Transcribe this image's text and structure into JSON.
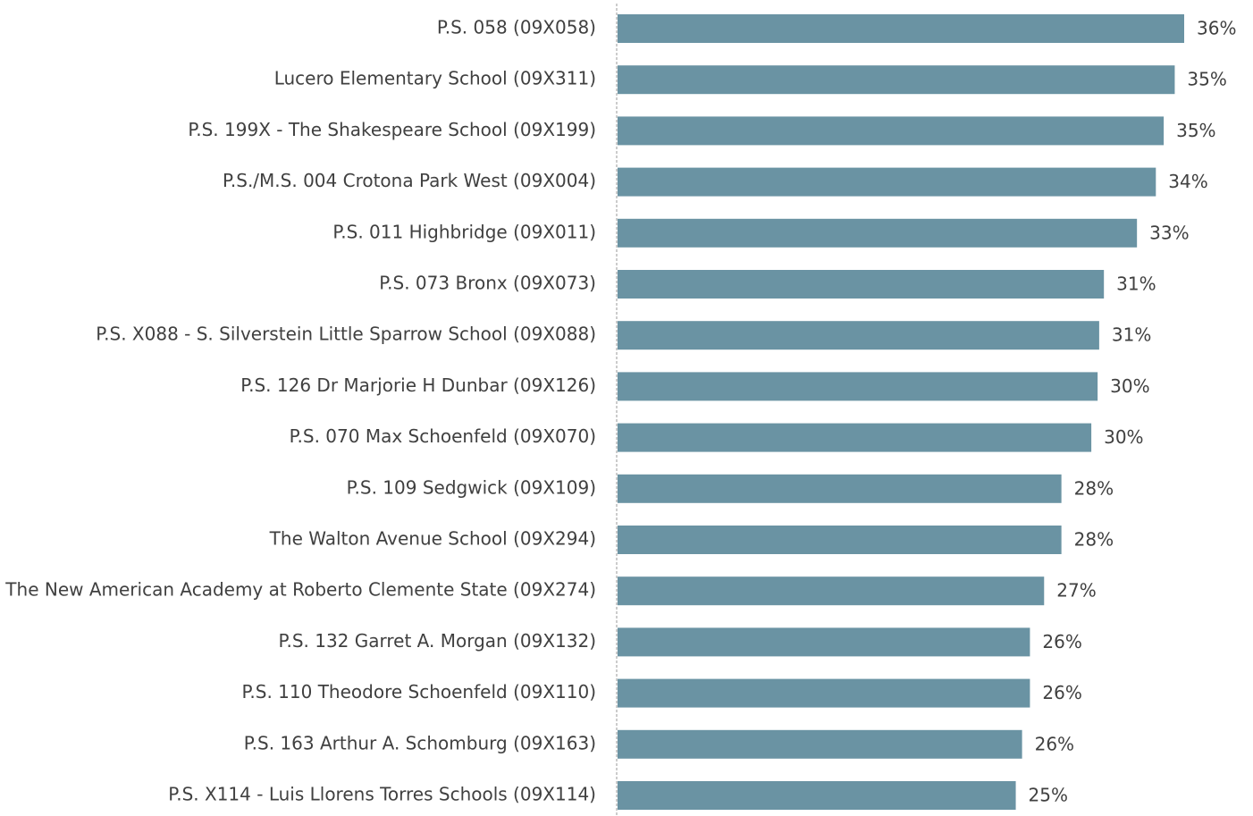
{
  "chart_data": {
    "type": "hbar",
    "categories": [
      "P.S. 058 (09X058)",
      "Lucero Elementary School (09X311)",
      "P.S. 199X - The Shakespeare School (09X199)",
      "P.S./M.S. 004 Crotona Park West (09X004)",
      "P.S. 011 Highbridge (09X011)",
      "P.S. 073 Bronx (09X073)",
      "P.S. X088 - S. Silverstein Little Sparrow School (09X088)",
      "P.S. 126 Dr Marjorie H Dunbar (09X126)",
      "P.S. 070 Max Schoenfeld (09X070)",
      "P.S. 109 Sedgwick (09X109)",
      "The Walton Avenue School (09X294)",
      "The New American Academy at Roberto Clemente State (09X274)",
      "P.S. 132 Garret A. Morgan (09X132)",
      "P.S. 110 Theodore Schoenfeld (09X110)",
      "P.S. 163 Arthur A. Schomburg (09X163)",
      "P.S. X114 - Luis Llorens Torres Schools (09X114)"
    ],
    "values": [
      36.0,
      35.4,
      34.7,
      34.2,
      33.0,
      30.9,
      30.6,
      30.5,
      30.1,
      28.2,
      28.2,
      27.1,
      26.2,
      26.2,
      25.7,
      25.3
    ],
    "value_labels": [
      "36%",
      "35%",
      "35%",
      "34%",
      "33%",
      "31%",
      "31%",
      "30%",
      "30%",
      "28%",
      "28%",
      "27%",
      "26%",
      "26%",
      "26%",
      "25%"
    ],
    "color": "#6a93a3"
  }
}
